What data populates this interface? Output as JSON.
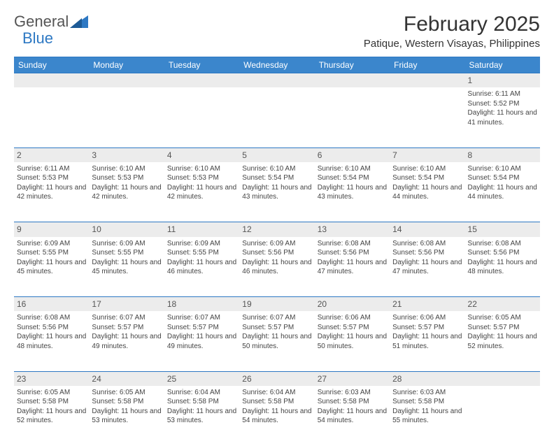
{
  "brand": {
    "part1": "General",
    "part2": "Blue"
  },
  "title": "February 2025",
  "location": "Patique, Western Visayas, Philippines",
  "colors": {
    "header_bg": "#3b86cc",
    "header_text": "#ffffff",
    "border": "#2d78c3",
    "daynum_bg": "#ececec",
    "text": "#444444",
    "background": "#ffffff"
  },
  "day_headers": [
    "Sunday",
    "Monday",
    "Tuesday",
    "Wednesday",
    "Thursday",
    "Friday",
    "Saturday"
  ],
  "weeks": [
    [
      {
        "n": "",
        "t": ""
      },
      {
        "n": "",
        "t": ""
      },
      {
        "n": "",
        "t": ""
      },
      {
        "n": "",
        "t": ""
      },
      {
        "n": "",
        "t": ""
      },
      {
        "n": "",
        "t": ""
      },
      {
        "n": "1",
        "t": "Sunrise: 6:11 AM\nSunset: 5:52 PM\nDaylight: 11 hours and 41 minutes."
      }
    ],
    [
      {
        "n": "2",
        "t": "Sunrise: 6:11 AM\nSunset: 5:53 PM\nDaylight: 11 hours and 42 minutes."
      },
      {
        "n": "3",
        "t": "Sunrise: 6:10 AM\nSunset: 5:53 PM\nDaylight: 11 hours and 42 minutes."
      },
      {
        "n": "4",
        "t": "Sunrise: 6:10 AM\nSunset: 5:53 PM\nDaylight: 11 hours and 42 minutes."
      },
      {
        "n": "5",
        "t": "Sunrise: 6:10 AM\nSunset: 5:54 PM\nDaylight: 11 hours and 43 minutes."
      },
      {
        "n": "6",
        "t": "Sunrise: 6:10 AM\nSunset: 5:54 PM\nDaylight: 11 hours and 43 minutes."
      },
      {
        "n": "7",
        "t": "Sunrise: 6:10 AM\nSunset: 5:54 PM\nDaylight: 11 hours and 44 minutes."
      },
      {
        "n": "8",
        "t": "Sunrise: 6:10 AM\nSunset: 5:54 PM\nDaylight: 11 hours and 44 minutes."
      }
    ],
    [
      {
        "n": "9",
        "t": "Sunrise: 6:09 AM\nSunset: 5:55 PM\nDaylight: 11 hours and 45 minutes."
      },
      {
        "n": "10",
        "t": "Sunrise: 6:09 AM\nSunset: 5:55 PM\nDaylight: 11 hours and 45 minutes."
      },
      {
        "n": "11",
        "t": "Sunrise: 6:09 AM\nSunset: 5:55 PM\nDaylight: 11 hours and 46 minutes."
      },
      {
        "n": "12",
        "t": "Sunrise: 6:09 AM\nSunset: 5:56 PM\nDaylight: 11 hours and 46 minutes."
      },
      {
        "n": "13",
        "t": "Sunrise: 6:08 AM\nSunset: 5:56 PM\nDaylight: 11 hours and 47 minutes."
      },
      {
        "n": "14",
        "t": "Sunrise: 6:08 AM\nSunset: 5:56 PM\nDaylight: 11 hours and 47 minutes."
      },
      {
        "n": "15",
        "t": "Sunrise: 6:08 AM\nSunset: 5:56 PM\nDaylight: 11 hours and 48 minutes."
      }
    ],
    [
      {
        "n": "16",
        "t": "Sunrise: 6:08 AM\nSunset: 5:56 PM\nDaylight: 11 hours and 48 minutes."
      },
      {
        "n": "17",
        "t": "Sunrise: 6:07 AM\nSunset: 5:57 PM\nDaylight: 11 hours and 49 minutes."
      },
      {
        "n": "18",
        "t": "Sunrise: 6:07 AM\nSunset: 5:57 PM\nDaylight: 11 hours and 49 minutes."
      },
      {
        "n": "19",
        "t": "Sunrise: 6:07 AM\nSunset: 5:57 PM\nDaylight: 11 hours and 50 minutes."
      },
      {
        "n": "20",
        "t": "Sunrise: 6:06 AM\nSunset: 5:57 PM\nDaylight: 11 hours and 50 minutes."
      },
      {
        "n": "21",
        "t": "Sunrise: 6:06 AM\nSunset: 5:57 PM\nDaylight: 11 hours and 51 minutes."
      },
      {
        "n": "22",
        "t": "Sunrise: 6:05 AM\nSunset: 5:57 PM\nDaylight: 11 hours and 52 minutes."
      }
    ],
    [
      {
        "n": "23",
        "t": "Sunrise: 6:05 AM\nSunset: 5:58 PM\nDaylight: 11 hours and 52 minutes."
      },
      {
        "n": "24",
        "t": "Sunrise: 6:05 AM\nSunset: 5:58 PM\nDaylight: 11 hours and 53 minutes."
      },
      {
        "n": "25",
        "t": "Sunrise: 6:04 AM\nSunset: 5:58 PM\nDaylight: 11 hours and 53 minutes."
      },
      {
        "n": "26",
        "t": "Sunrise: 6:04 AM\nSunset: 5:58 PM\nDaylight: 11 hours and 54 minutes."
      },
      {
        "n": "27",
        "t": "Sunrise: 6:03 AM\nSunset: 5:58 PM\nDaylight: 11 hours and 54 minutes."
      },
      {
        "n": "28",
        "t": "Sunrise: 6:03 AM\nSunset: 5:58 PM\nDaylight: 11 hours and 55 minutes."
      },
      {
        "n": "",
        "t": ""
      }
    ]
  ]
}
